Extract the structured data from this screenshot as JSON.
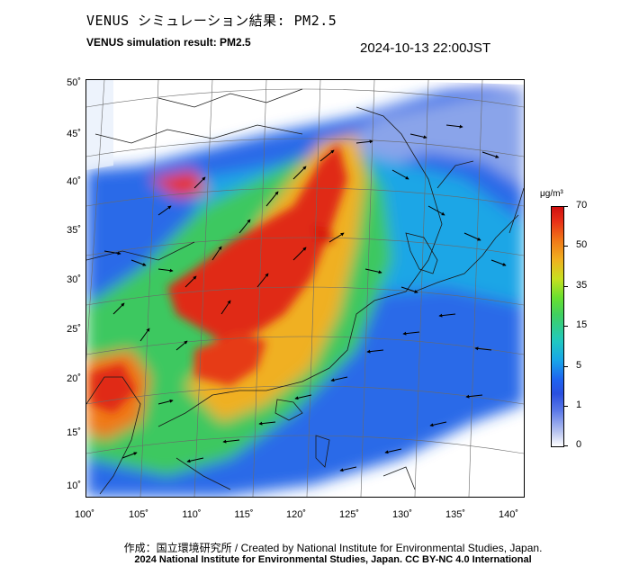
{
  "title_ja": "VENUS シミュレーション結果: PM2.5",
  "title_en": "VENUS simulation result: PM2.5",
  "timestamp": "2024-10-13 22:00JST",
  "map": {
    "lat_labels": [
      "50˚",
      "45˚",
      "40˚",
      "35˚",
      "30˚",
      "25˚",
      "20˚",
      "15˚",
      "10˚"
    ],
    "lon_labels": [
      "100˚",
      "105˚",
      "110˚",
      "115˚",
      "120˚",
      "125˚",
      "130˚",
      "135˚",
      "140˚"
    ]
  },
  "colorbar": {
    "unit": "μg/m³",
    "labels": [
      "70",
      "50",
      "35",
      "15",
      "5",
      "1",
      "0"
    ],
    "colors": [
      "#d01010",
      "#f07818",
      "#f0b020",
      "#68e030",
      "#20c8c0",
      "#2a4fe0",
      "#ffffff"
    ]
  },
  "credit": {
    "line1": "作成：国立環境研究所 / Created by National Institute for Environmental Studies, Japan.",
    "line2": "2024 National Institute for Environmental Studies, Japan. CC BY-NC 4.0 International"
  }
}
